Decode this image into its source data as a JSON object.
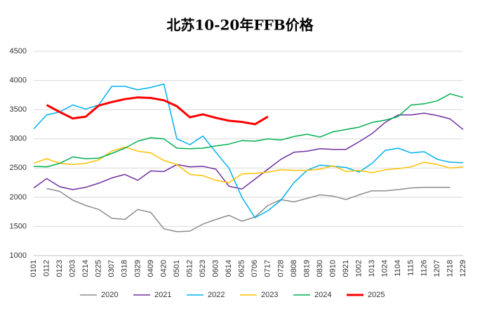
{
  "chart_data": {
    "type": "line",
    "title": "北苏10-20年FFB价格",
    "categories": [
      "0101",
      "0112",
      "0123",
      "0203",
      "0214",
      "0225",
      "0307",
      "0318",
      "0329",
      "0409",
      "0420",
      "0501",
      "0512",
      "0523",
      "0603",
      "0614",
      "0625",
      "0706",
      "0717",
      "0728",
      "0808",
      "0819",
      "0830",
      "0910",
      "0921",
      "1002",
      "1013",
      "1024",
      "1104",
      "1115",
      "1126",
      "1207",
      "1218",
      "1229"
    ],
    "series": [
      {
        "name": "2020",
        "color": "#8c8c8c",
        "width": 1.5,
        "values": [
          null,
          2150,
          2100,
          1950,
          1860,
          1790,
          1640,
          1620,
          1790,
          1740,
          1460,
          1410,
          1420,
          1540,
          1620,
          1690,
          1590,
          1660,
          1860,
          1960,
          1920,
          1980,
          2040,
          2020,
          1960,
          2040,
          2110,
          2110,
          2130,
          2160,
          2170,
          2170,
          2170,
          null
        ]
      },
      {
        "name": "2021",
        "color": "#7030a0",
        "width": 1.5,
        "values": [
          2160,
          2320,
          2180,
          2130,
          2170,
          2240,
          2330,
          2390,
          2290,
          2450,
          2440,
          2560,
          2520,
          2530,
          2480,
          2190,
          2140,
          2310,
          2480,
          2650,
          2770,
          2790,
          2830,
          2820,
          2820,
          2950,
          3090,
          3280,
          3410,
          3410,
          3440,
          3400,
          3340,
          3160
        ]
      },
      {
        "name": "2022",
        "color": "#00b0f0",
        "width": 1.5,
        "values": [
          3170,
          3410,
          3460,
          3580,
          3510,
          3580,
          3900,
          3900,
          3840,
          3880,
          3940,
          3000,
          2900,
          3050,
          2770,
          2500,
          2000,
          1650,
          1770,
          1950,
          2250,
          2460,
          2550,
          2530,
          2510,
          2430,
          2580,
          2800,
          2840,
          2760,
          2780,
          2650,
          2600,
          2590
        ]
      },
      {
        "name": "2023",
        "color": "#ffc000",
        "width": 1.5,
        "values": [
          2580,
          2660,
          2580,
          2560,
          2580,
          2640,
          2790,
          2860,
          2790,
          2760,
          2630,
          2560,
          2390,
          2370,
          2290,
          2250,
          2400,
          2410,
          2430,
          2470,
          2460,
          2460,
          2480,
          2540,
          2440,
          2460,
          2420,
          2470,
          2490,
          2520,
          2600,
          2560,
          2500,
          2520
        ]
      },
      {
        "name": "2024",
        "color": "#00b050",
        "width": 1.5,
        "values": [
          2530,
          2520,
          2580,
          2690,
          2660,
          2670,
          2750,
          2840,
          2960,
          3020,
          3000,
          2840,
          2830,
          2840,
          2880,
          2910,
          2970,
          2960,
          3000,
          2980,
          3040,
          3080,
          3030,
          3120,
          3160,
          3200,
          3280,
          3320,
          3380,
          3580,
          3600,
          3650,
          3770,
          3710
        ]
      },
      {
        "name": "2025",
        "color": "#ff0000",
        "width": 3,
        "values": [
          null,
          3580,
          3460,
          3350,
          3380,
          3570,
          3630,
          3680,
          3710,
          3700,
          3660,
          3560,
          3370,
          3420,
          3360,
          3310,
          3290,
          3250,
          3380,
          null,
          null,
          null,
          null,
          null,
          null,
          null,
          null,
          null,
          null,
          null,
          null,
          null,
          null,
          null
        ]
      }
    ],
    "ylim": [
      1000,
      4500
    ],
    "yticks": [
      1000,
      1500,
      2000,
      2500,
      3000,
      3500,
      4000,
      4500
    ],
    "grid": true,
    "legend": "bottom"
  }
}
